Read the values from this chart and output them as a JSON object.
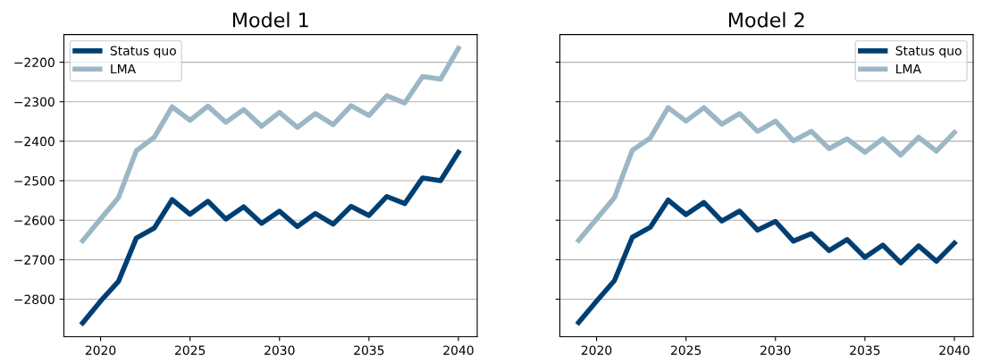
{
  "chart_data": [
    {
      "type": "line",
      "title": "Model 1",
      "x": [
        2019,
        2020,
        2021,
        2022,
        2023,
        2024,
        2025,
        2026,
        2027,
        2028,
        2029,
        2030,
        2031,
        2032,
        2033,
        2034,
        2035,
        2036,
        2037,
        2038,
        2039,
        2040
      ],
      "series": [
        {
          "name": "Status quo",
          "color": "#003f72",
          "values": [
            -2860,
            -2805,
            -2755,
            -2645,
            -2620,
            -2548,
            -2585,
            -2552,
            -2597,
            -2566,
            -2608,
            -2577,
            -2616,
            -2583,
            -2610,
            -2565,
            -2588,
            -2540,
            -2558,
            -2493,
            -2500,
            -2428
          ]
        },
        {
          "name": "LMA",
          "color": "#9bb7c6",
          "values": [
            -2652,
            -2597,
            -2543,
            -2424,
            -2390,
            -2313,
            -2347,
            -2311,
            -2352,
            -2320,
            -2362,
            -2327,
            -2365,
            -2330,
            -2358,
            -2310,
            -2335,
            -2285,
            -2303,
            -2236,
            -2243,
            -2165
          ]
        }
      ],
      "xlim": [
        2017.95,
        2041.05
      ],
      "xticks": [
        2020,
        2025,
        2030,
        2035,
        2040
      ],
      "ylim": [
        -2895,
        -2130
      ],
      "yticks": [
        -2800,
        -2700,
        -2600,
        -2500,
        -2400,
        -2300,
        -2200
      ],
      "grid": "y",
      "legend": "top left"
    },
    {
      "type": "line",
      "title": "Model 2",
      "x": [
        2019,
        2020,
        2021,
        2022,
        2023,
        2024,
        2025,
        2026,
        2027,
        2028,
        2029,
        2030,
        2031,
        2032,
        2033,
        2034,
        2035,
        2036,
        2037,
        2038,
        2039,
        2040
      ],
      "series": [
        {
          "name": "Status quo",
          "color": "#003f72",
          "values": [
            -2859,
            -2805,
            -2753,
            -2643,
            -2618,
            -2549,
            -2586,
            -2555,
            -2602,
            -2577,
            -2625,
            -2603,
            -2653,
            -2634,
            -2677,
            -2649,
            -2694,
            -2663,
            -2708,
            -2665,
            -2704,
            -2658
          ]
        },
        {
          "name": "LMA",
          "color": "#9bb7c6",
          "values": [
            -2651,
            -2597,
            -2543,
            -2423,
            -2392,
            -2315,
            -2349,
            -2315,
            -2357,
            -2330,
            -2375,
            -2349,
            -2399,
            -2375,
            -2419,
            -2394,
            -2428,
            -2394,
            -2435,
            -2390,
            -2425,
            -2378
          ]
        }
      ],
      "xlim": [
        2017.95,
        2041.05
      ],
      "xticks": [
        2020,
        2025,
        2030,
        2035,
        2040
      ],
      "ylim": [
        -2895,
        -2130
      ],
      "yticks": [
        -2800,
        -2700,
        -2600,
        -2500,
        -2400,
        -2300,
        -2200
      ],
      "grid": "y",
      "legend": "top right",
      "tick_labels": "x"
    }
  ]
}
